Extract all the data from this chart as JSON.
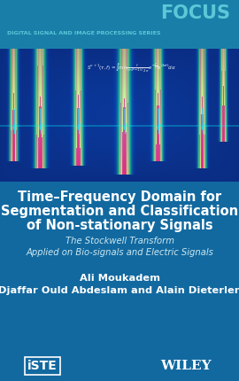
{
  "bg_color_top": "#1a7fa8",
  "bg_color_bottom": "#1269a0",
  "focus_text": "FOCUS",
  "series_text": "DIGITAL SIGNAL AND IMAGE PROCESSING SERIES",
  "title_line1": "Time–Frequency Domain for",
  "title_line2": "Segmentation and Classification",
  "title_line3": "of Non-stationary Signals",
  "subtitle_line1": "The Stockwell Transform",
  "subtitle_line2": "Applied on Bio-signals and Electric Signals",
  "author_line1": "Ali Moukadem",
  "author_line2": "Djaffar Ould Abdeslam and Alain Dieterlen",
  "publisher_left": "iSTE",
  "publisher_right": "WILEY",
  "header_bg": "#1a7fa8",
  "body_bg": "#1269a0",
  "focus_color": "#5bc8d8",
  "series_color": "#5bc8d8",
  "title_color": "#ffffff",
  "subtitle_color": "#cce8f0",
  "author_color": "#ffffff",
  "logo_color": "#ffffff"
}
